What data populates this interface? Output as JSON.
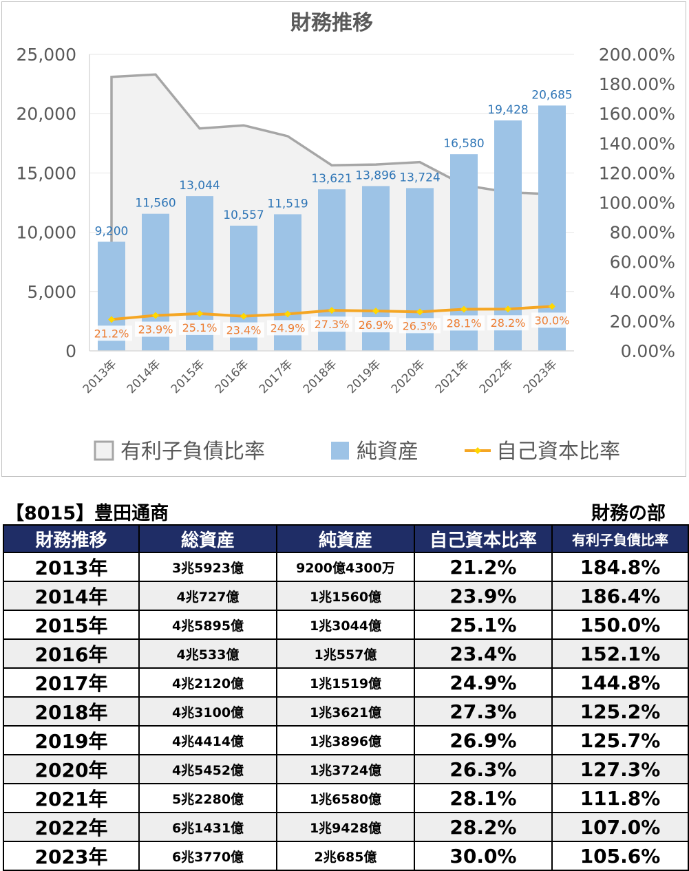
{
  "chart_data": {
    "type": "bar",
    "title": "財務推移",
    "categories": [
      "2013年",
      "2014年",
      "2015年",
      "2016年",
      "2017年",
      "2018年",
      "2019年",
      "2020年",
      "2021年",
      "2022年",
      "2023年"
    ],
    "series": [
      {
        "name": "有利子負債比率",
        "kind": "area",
        "axis": "right",
        "color": "#a6a6a6",
        "values": [
          184.8,
          186.4,
          150.0,
          152.1,
          144.8,
          125.2,
          125.7,
          127.3,
          111.8,
          107.0,
          105.6
        ]
      },
      {
        "name": "純資産",
        "kind": "bar",
        "axis": "left",
        "color": "#9dc3e6",
        "values": [
          9200,
          11560,
          13044,
          10557,
          11519,
          13621,
          13896,
          13724,
          16580,
          19428,
          20685
        ],
        "labels": [
          "9,200",
          "11,560",
          "13,044",
          "10,557",
          "11,519",
          "13,621",
          "13,896",
          "13,724",
          "16,580",
          "19,428",
          "20,685"
        ]
      },
      {
        "name": "自己資本比率",
        "kind": "line",
        "axis": "right",
        "color": "#f5a623",
        "values": [
          21.2,
          23.9,
          25.1,
          23.4,
          24.9,
          27.3,
          26.9,
          26.3,
          28.1,
          28.2,
          30.0
        ],
        "labels": [
          "21.2%",
          "23.9%",
          "25.1%",
          "23.4%",
          "24.9%",
          "27.3%",
          "26.9%",
          "26.3%",
          "28.1%",
          "28.2%",
          "30.0%"
        ]
      }
    ],
    "ylim": [
      0,
      25000
    ],
    "y2lim": [
      0,
      200
    ],
    "y_ticks": [
      "0",
      "5,000",
      "10,000",
      "15,000",
      "20,000",
      "25,000"
    ],
    "y2_ticks": [
      "0.00%",
      "20.00%",
      "40.00%",
      "60.00%",
      "80.00%",
      "100.00%",
      "120.00%",
      "140.00%",
      "160.00%",
      "180.00%",
      "200.00%"
    ],
    "legend_position": "bottom",
    "colors": {
      "bar_label": "#2e75b6",
      "line_label": "#ed7d31",
      "line_marker": "#ffd700"
    }
  },
  "table": {
    "company": "【8015】豊田通商",
    "section": "財務の部",
    "headers": [
      "財務推移",
      "総資産",
      "純資産",
      "自己資本比率",
      "有利子負債比率"
    ],
    "rows": [
      [
        "2013年",
        "3兆5923億",
        "9200億4300万",
        "21.2%",
        "184.8%"
      ],
      [
        "2014年",
        "4兆727億",
        "1兆1560億",
        "23.9%",
        "186.4%"
      ],
      [
        "2015年",
        "4兆5895億",
        "1兆3044億",
        "25.1%",
        "150.0%"
      ],
      [
        "2016年",
        "4兆533億",
        "1兆557億",
        "23.4%",
        "152.1%"
      ],
      [
        "2017年",
        "4兆2120億",
        "1兆1519億",
        "24.9%",
        "144.8%"
      ],
      [
        "2018年",
        "4兆3100億",
        "1兆3621億",
        "27.3%",
        "125.2%"
      ],
      [
        "2019年",
        "4兆4414億",
        "1兆3896億",
        "26.9%",
        "125.7%"
      ],
      [
        "2020年",
        "4兆5452億",
        "1兆3724億",
        "26.3%",
        "127.3%"
      ],
      [
        "2021年",
        "5兆2280億",
        "1兆6580億",
        "28.1%",
        "111.8%"
      ],
      [
        "2022年",
        "6兆1431億",
        "1兆9428億",
        "28.2%",
        "107.0%"
      ],
      [
        "2023年",
        "6兆3770億",
        "2兆685億",
        "30.0%",
        "105.6%"
      ]
    ]
  }
}
